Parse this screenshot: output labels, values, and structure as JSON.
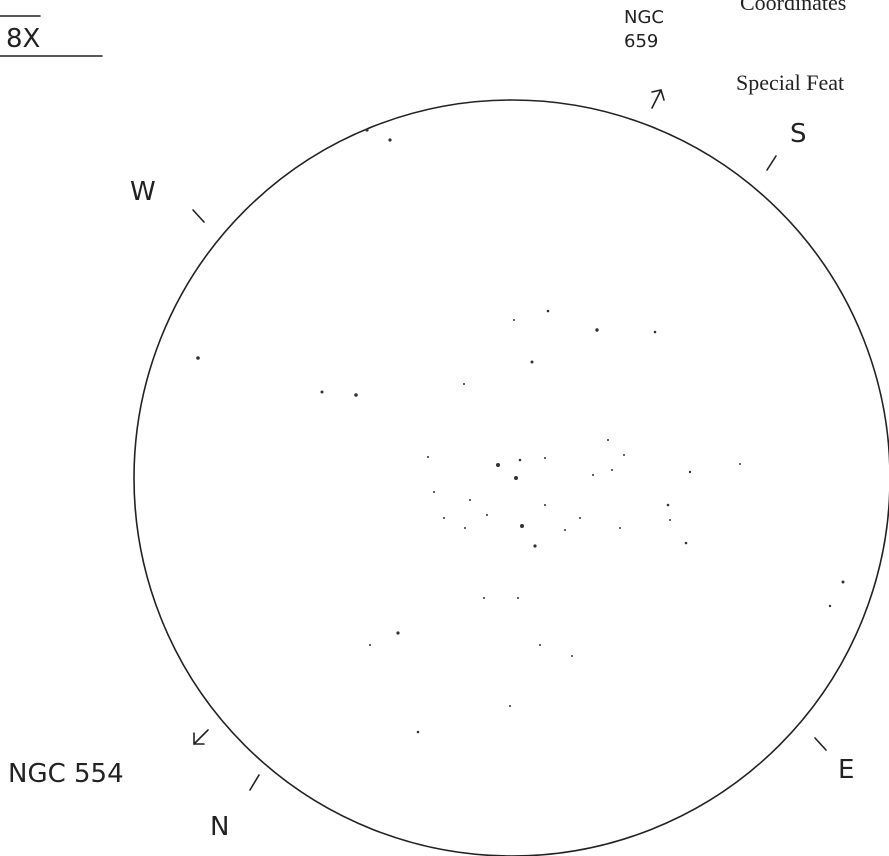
{
  "header": {
    "magnification": "8X",
    "fields": [
      "Coordinates",
      "Special Feat"
    ]
  },
  "labels": {
    "ngc659": [
      "NGC",
      "659"
    ],
    "ngc554": "NGC 554",
    "directions": {
      "west": "W",
      "south": "S",
      "east": "E",
      "north": "N"
    }
  }
}
